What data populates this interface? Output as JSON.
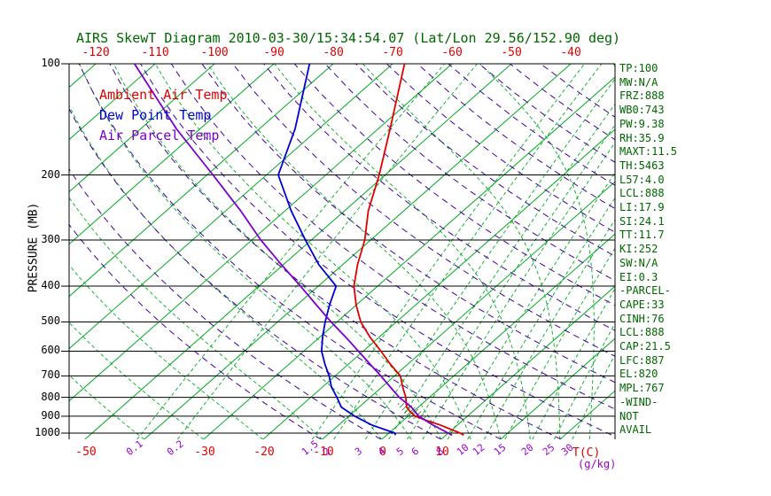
{
  "title": "AIRS SkewT Diagram 2010-03-30/15:34:54.07 (Lat/Lon 29.56/152.90 deg)",
  "y_axis": {
    "label": "PRESSURE (MB)",
    "ticks": [
      100,
      200,
      300,
      400,
      500,
      600,
      700,
      800,
      900,
      1000
    ]
  },
  "top_axis": {
    "labels": [
      -120,
      -110,
      -100,
      -90,
      -80,
      -70,
      -60,
      -50,
      -40
    ]
  },
  "bottom_axis": {
    "temp_labels": [
      -50,
      -30,
      -20,
      -10,
      0,
      10
    ],
    "temp_unit": "T(C)",
    "ratio_labels": [
      0.1,
      0.2,
      1.5,
      2,
      3,
      4,
      5,
      6,
      8,
      10,
      12,
      15,
      20,
      25,
      30
    ],
    "ratio_unit": "(g/kg)"
  },
  "legend": [
    {
      "label": "Ambient Air Temp",
      "color": "#e10000"
    },
    {
      "label": "Dew Point Temp",
      "color": "#0000d2"
    },
    {
      "label": "Air Parcel Temp",
      "color": "#7b00cb"
    }
  ],
  "indices": [
    "TP:100",
    "MW:N/A",
    "FRZ:888",
    "WB0:743",
    "PW:9.38",
    "RH:35.9",
    "MAXT:11.5",
    "TH:5463",
    "L57:4.0",
    "LCL:888",
    "LI:17.9",
    "SI:24.1",
    "TT:11.7",
    "KI:252",
    "SW:N/A",
    "EI:0.3",
    "-PARCEL-",
    "CAPE:33",
    "CINH:76",
    "LCL:888",
    "CAP:21.5",
    "LFC:887",
    "EL:820",
    "MPL:767",
    "-WIND-",
    "NOT",
    "AVAIL"
  ],
  "colors": {
    "grid_green": "#00aa22",
    "adiabat_purple": "#44009e",
    "frame_black": "#000000",
    "panel_green": "#006600",
    "hatch_green": "#005500",
    "top_labels_red": "#e10000",
    "ratio_labels_purple": "#9900cc"
  },
  "chart_data": {
    "type": "line",
    "title": "AIRS SkewT Diagram 2010-03-30/15:34:54.07 (Lat/Lon 29.56/152.90 deg)",
    "xlabel": "T(C)",
    "ylabel": "PRESSURE (MB)",
    "ylim": [
      1000,
      100
    ],
    "y_scale": "log",
    "x_skew_deg": 45,
    "top_axis_temps_at_100mb": [
      -120,
      -110,
      -100,
      -90,
      -80,
      -70,
      -60,
      -50,
      -40
    ],
    "surface_axis_temps": [
      -50,
      -30,
      -20,
      -10,
      0,
      10
    ],
    "series": [
      {
        "name": "Ambient Air Temp",
        "color": "#e10000",
        "points": [
          [
            1013,
            13
          ],
          [
            1000,
            12
          ],
          [
            950,
            7
          ],
          [
            925,
            4
          ],
          [
            900,
            1.2
          ],
          [
            875,
            -0.5
          ],
          [
            850,
            -2
          ],
          [
            800,
            -4
          ],
          [
            750,
            -6.5
          ],
          [
            700,
            -9
          ],
          [
            650,
            -13
          ],
          [
            600,
            -17
          ],
          [
            550,
            -21.5
          ],
          [
            500,
            -26
          ],
          [
            450,
            -30
          ],
          [
            400,
            -34
          ],
          [
            350,
            -37.5
          ],
          [
            300,
            -41
          ],
          [
            250,
            -46
          ],
          [
            200,
            -51
          ],
          [
            150,
            -58
          ],
          [
            100,
            -68
          ]
        ]
      },
      {
        "name": "Dew Point Temp",
        "color": "#0000d2",
        "points": [
          [
            1013,
            1.5
          ],
          [
            1000,
            1
          ],
          [
            950,
            -4.5
          ],
          [
            900,
            -9
          ],
          [
            850,
            -13
          ],
          [
            800,
            -15.6
          ],
          [
            750,
            -18.5
          ],
          [
            700,
            -21
          ],
          [
            650,
            -24
          ],
          [
            600,
            -27
          ],
          [
            550,
            -29.5
          ],
          [
            500,
            -32
          ],
          [
            450,
            -34.5
          ],
          [
            400,
            -37
          ],
          [
            350,
            -44
          ],
          [
            300,
            -51
          ],
          [
            250,
            -59
          ],
          [
            200,
            -68
          ],
          [
            150,
            -74
          ],
          [
            100,
            -84
          ]
        ]
      },
      {
        "name": "Air Parcel Temp",
        "color": "#7b00cb",
        "points": [
          [
            1013,
            11
          ],
          [
            1000,
            10
          ],
          [
            950,
            5.8
          ],
          [
            900,
            1.8
          ],
          [
            850,
            -1.2
          ],
          [
            800,
            -5.1
          ],
          [
            750,
            -8.6
          ],
          [
            700,
            -12.3
          ],
          [
            650,
            -16.4
          ],
          [
            600,
            -20.8
          ],
          [
            550,
            -25.6
          ],
          [
            500,
            -31
          ],
          [
            450,
            -36.7
          ],
          [
            400,
            -43
          ],
          [
            350,
            -50.3
          ],
          [
            300,
            -58.5
          ],
          [
            250,
            -67.5
          ],
          [
            200,
            -79
          ],
          [
            150,
            -94
          ],
          [
            100,
            -113.5
          ]
        ]
      }
    ],
    "background": {
      "isotherms_c": {
        "min": -120,
        "max": 40,
        "step": 10
      },
      "dry_adiabats_k": {
        "min": 260,
        "max": 440,
        "step": 10
      },
      "moist_adiabats_start_c": [
        -40,
        -30,
        -20,
        -10,
        0,
        5,
        10,
        15,
        20,
        25,
        30,
        35,
        40
      ],
      "mixing_ratio_g_kg": [
        0.1,
        0.2,
        1.5,
        2,
        3,
        4,
        5,
        6,
        8,
        10,
        12,
        15,
        20,
        25,
        30
      ]
    },
    "hatch_region": {
      "p": [
        915,
        870,
        830
      ],
      "t_min": [
        0.5,
        -2.0,
        -4.4
      ],
      "t_max": [
        4.0,
        1.0,
        -2.3
      ]
    }
  }
}
